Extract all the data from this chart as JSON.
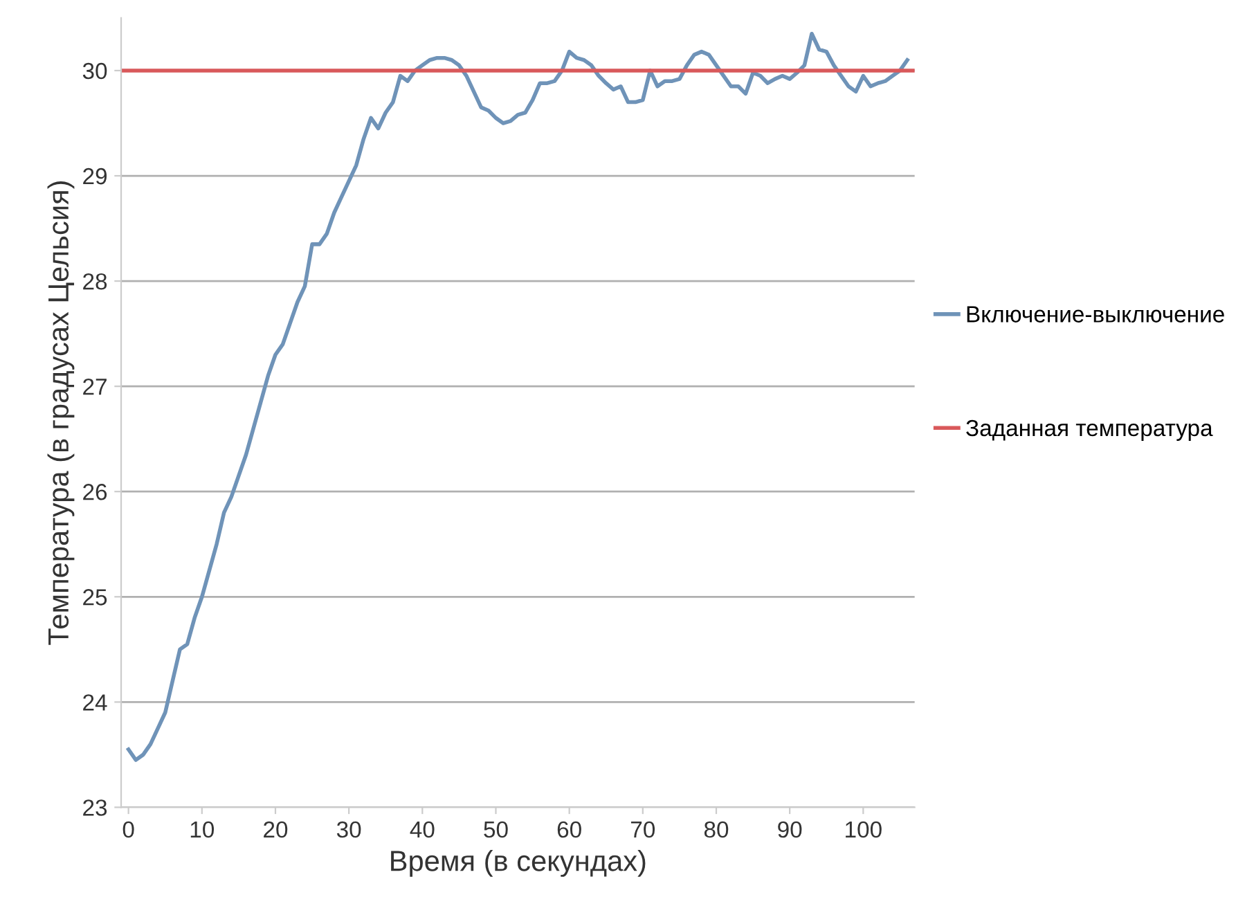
{
  "chart_data": {
    "type": "line",
    "xlabel": "Время (в секундах)",
    "ylabel": "Температура (в градусах Цельсия)",
    "xlim": [
      -1,
      107
    ],
    "ylim": [
      23,
      30.5
    ],
    "xticks": [
      0,
      10,
      20,
      30,
      40,
      50,
      60,
      70,
      80,
      90,
      100
    ],
    "yticks": [
      23,
      24,
      25,
      26,
      27,
      28,
      29,
      30
    ],
    "grid": "y",
    "legend": "right",
    "marker": "none",
    "line_style": "solid",
    "series": [
      {
        "name": "Включение-выключение",
        "color": "#6f93b8",
        "x": [
          0,
          1,
          2,
          3,
          4,
          5,
          6,
          7,
          8,
          9,
          10,
          11,
          12,
          13,
          14,
          15,
          16,
          17,
          18,
          19,
          20,
          21,
          22,
          23,
          24,
          25,
          26,
          27,
          28,
          29,
          30,
          31,
          32,
          33,
          34,
          35,
          36,
          37,
          38,
          39,
          40,
          41,
          42,
          43,
          44,
          45,
          46,
          47,
          48,
          49,
          50,
          51,
          52,
          53,
          54,
          55,
          56,
          57,
          58,
          59,
          60,
          61,
          62,
          63,
          64,
          65,
          66,
          67,
          68,
          69,
          70,
          71,
          72,
          73,
          74,
          75,
          76,
          77,
          78,
          79,
          80,
          81,
          82,
          83,
          84,
          85,
          86,
          87,
          88,
          89,
          90,
          91,
          92,
          93,
          94,
          95,
          96,
          97,
          98,
          99,
          100,
          101,
          102,
          103,
          104,
          105,
          106
        ],
        "values": [
          23.55,
          23.45,
          23.5,
          23.6,
          23.75,
          23.9,
          24.2,
          24.5,
          24.55,
          24.8,
          25.0,
          25.25,
          25.5,
          25.8,
          25.95,
          26.15,
          26.35,
          26.6,
          26.85,
          27.1,
          27.3,
          27.4,
          27.6,
          27.8,
          27.95,
          28.35,
          28.35,
          28.45,
          28.65,
          28.8,
          28.95,
          29.1,
          29.35,
          29.55,
          29.45,
          29.6,
          29.7,
          29.95,
          29.9,
          30.0,
          30.05,
          30.1,
          30.12,
          30.12,
          30.1,
          30.05,
          29.95,
          29.8,
          29.65,
          29.62,
          29.55,
          29.5,
          29.52,
          29.58,
          29.6,
          29.72,
          29.88,
          29.88,
          29.9,
          30.0,
          30.18,
          30.12,
          30.1,
          30.05,
          29.95,
          29.88,
          29.82,
          29.85,
          29.7,
          29.7,
          29.72,
          30.0,
          29.85,
          29.9,
          29.9,
          29.92,
          30.05,
          30.15,
          30.18,
          30.15,
          30.05,
          29.95,
          29.85,
          29.85,
          29.78,
          29.98,
          29.95,
          29.88,
          29.92,
          29.95,
          29.92,
          29.98,
          30.05,
          30.35,
          30.2,
          30.18,
          30.05,
          29.95,
          29.85,
          29.8,
          29.95,
          29.85,
          29.88,
          29.9,
          29.95,
          30.0,
          30.1
        ]
      },
      {
        "name": "Заданная температура",
        "color": "#d9595b",
        "x": [
          -1,
          107
        ],
        "values": [
          30,
          30
        ]
      }
    ]
  }
}
